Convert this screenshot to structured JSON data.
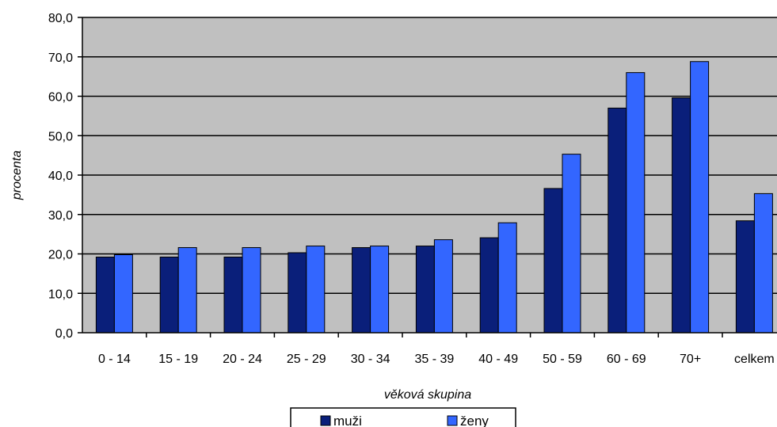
{
  "chart_data": {
    "type": "bar",
    "categories": [
      "0 - 14",
      "15 - 19",
      "20 - 24",
      "25 - 29",
      "30 - 34",
      "35 - 39",
      "40 - 49",
      "50 - 59",
      "60 - 69",
      "70+",
      "celkem"
    ],
    "series": [
      {
        "name": "muži",
        "color": "#0a1f7a",
        "values": [
          19.2,
          19.2,
          19.2,
          20.3,
          21.6,
          22.0,
          24.1,
          36.6,
          57.0,
          59.6,
          28.4
        ]
      },
      {
        "name": "ženy",
        "color": "#3366ff",
        "values": [
          19.8,
          21.6,
          21.6,
          22.0,
          22.0,
          23.6,
          27.9,
          45.3,
          66.0,
          68.8,
          35.3
        ]
      }
    ],
    "title": "",
    "xlabel": "věková skupina",
    "ylabel": "procenta",
    "ylim": [
      0,
      80
    ],
    "yticks": [
      "0,0",
      "10,0",
      "20,0",
      "30,0",
      "40,0",
      "50,0",
      "60,0",
      "70,0",
      "80,0"
    ],
    "grid": true,
    "plot_background": "#c0c0c0",
    "legend_position": "bottom"
  }
}
